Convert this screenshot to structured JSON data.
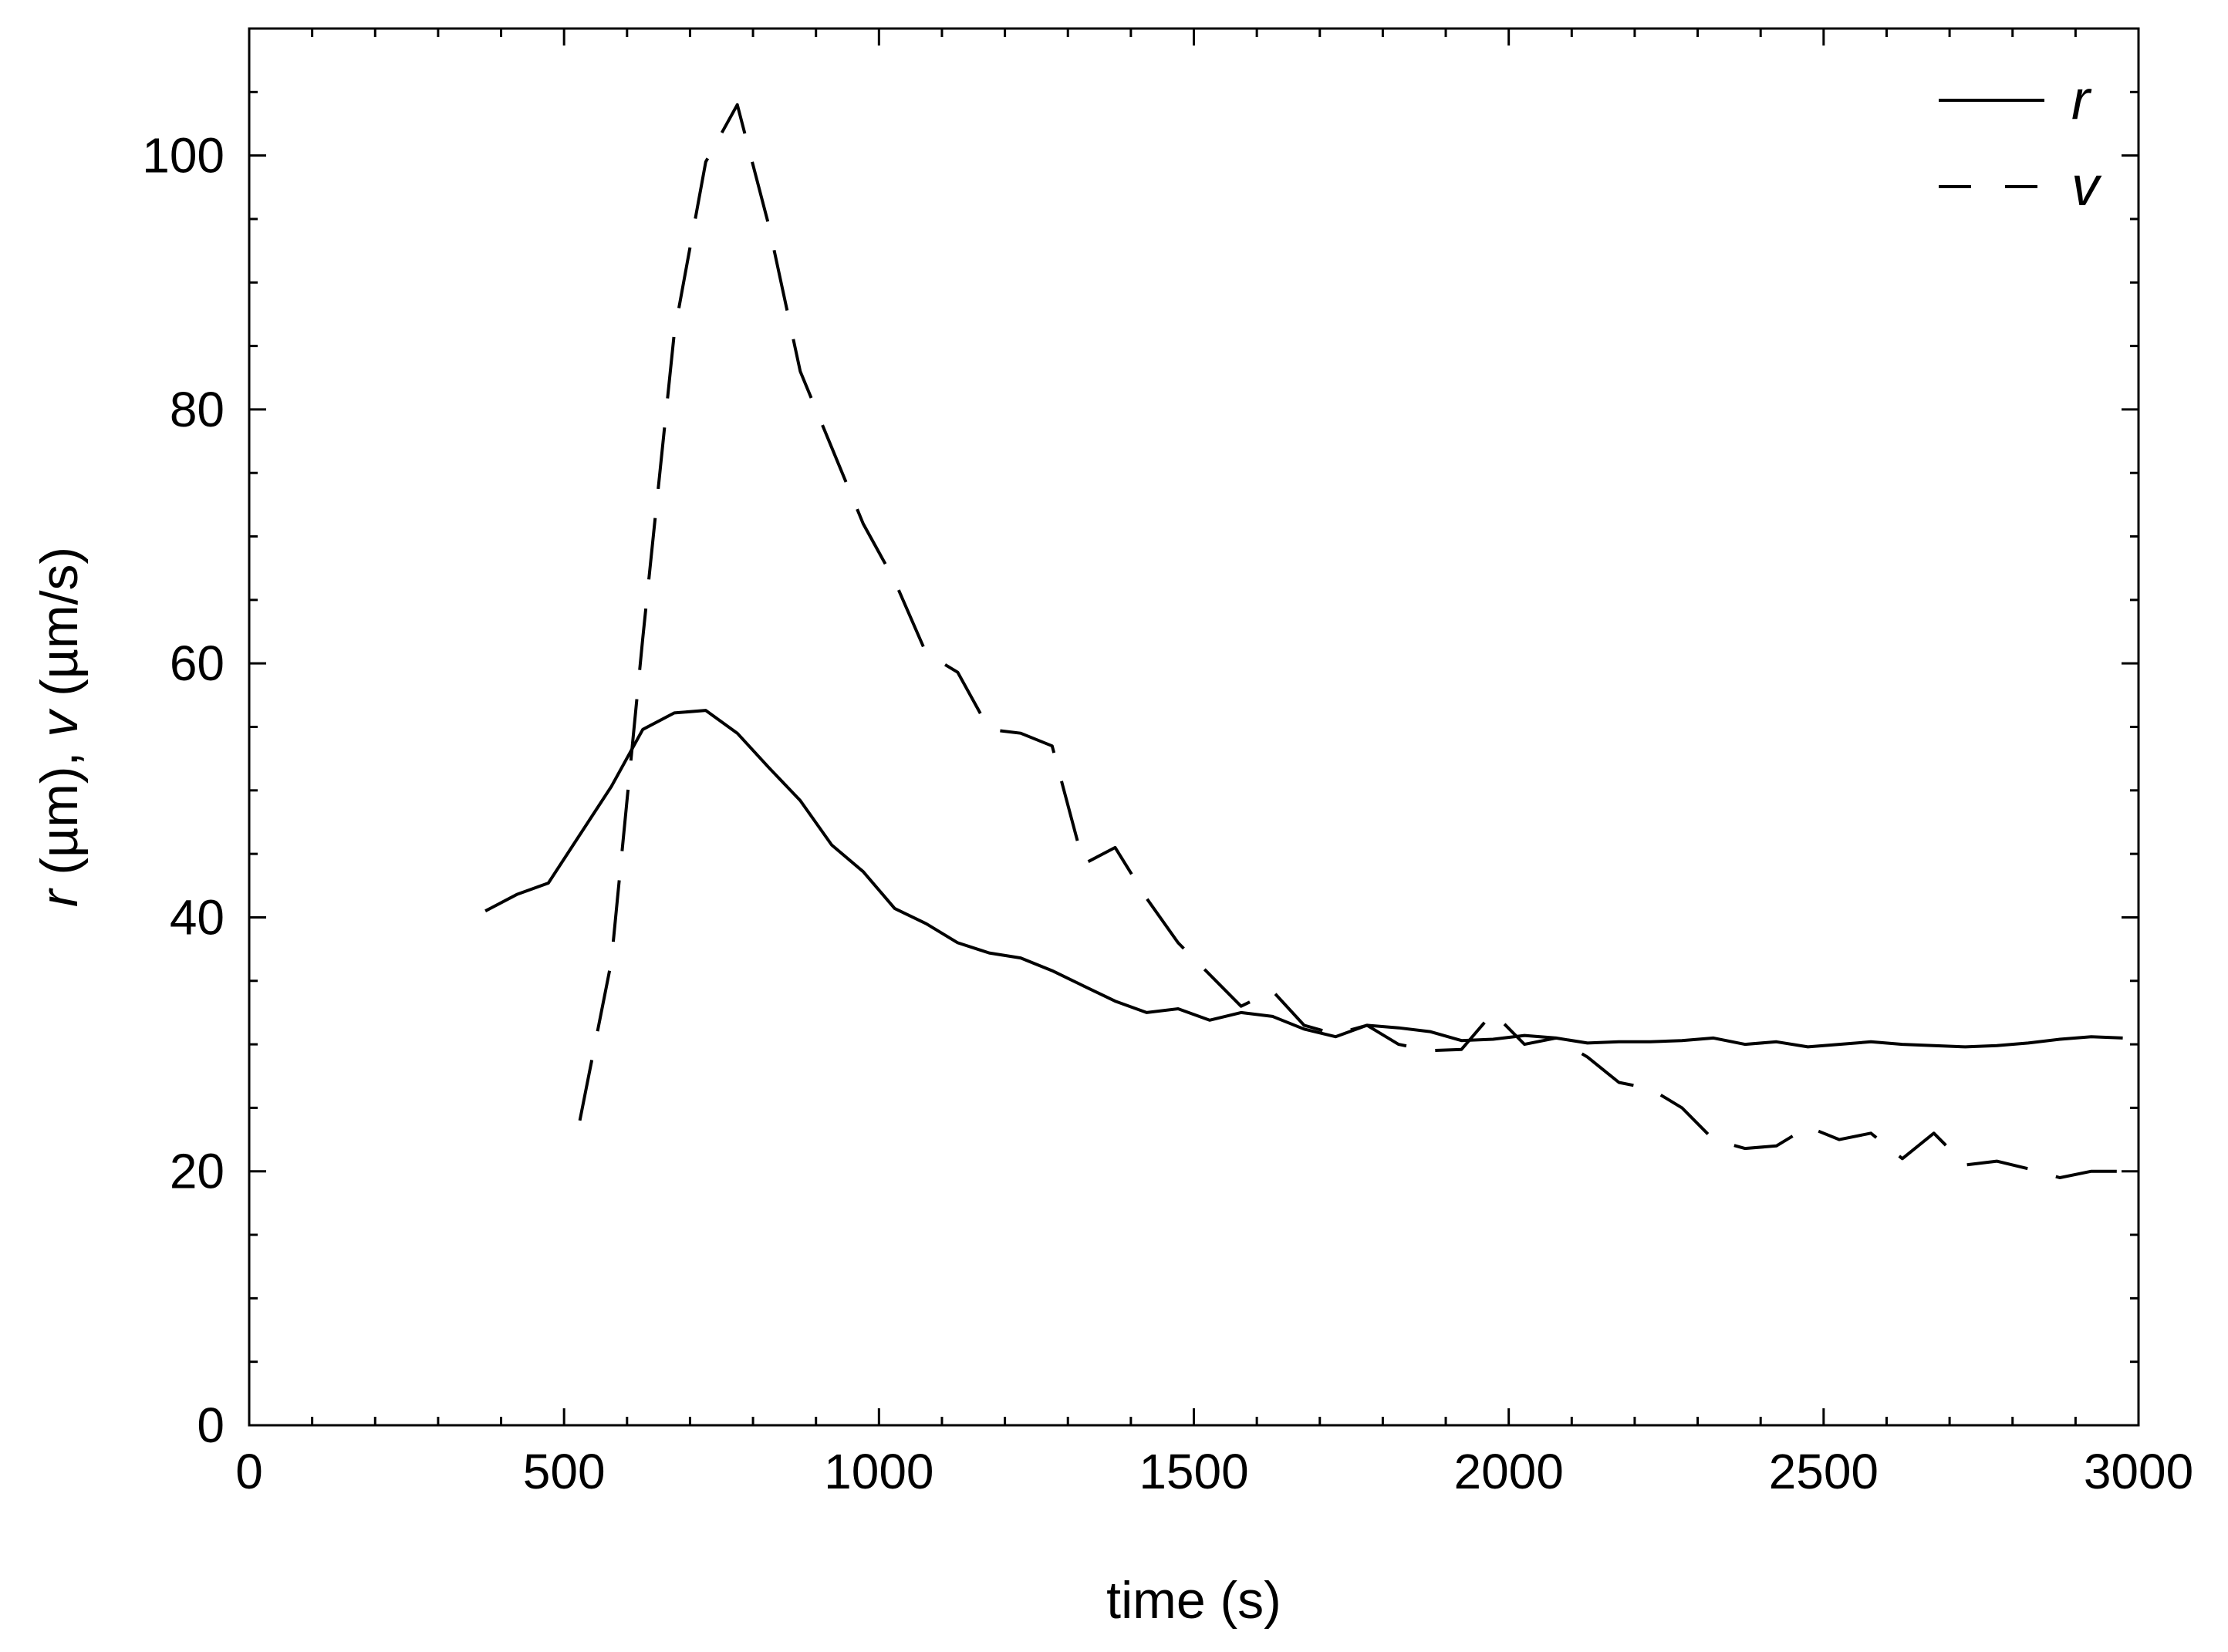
{
  "chart_data": {
    "type": "line",
    "title": "",
    "xlabel": "time (s)",
    "ylabel": {
      "parts": [
        {
          "text": "r",
          "italic": true
        },
        {
          "text": " (µm), ",
          "italic": false
        },
        {
          "text": "v",
          "italic": true
        },
        {
          "text": " (µm/s)",
          "italic": false
        }
      ]
    },
    "xlim": [
      0,
      3000
    ],
    "ylim": [
      0,
      110
    ],
    "xticks": [
      0,
      500,
      1000,
      1500,
      2000,
      2500,
      3000
    ],
    "xtick_labels": [
      "0",
      "500",
      "1000",
      "1500",
      "2000",
      "2500",
      "3000"
    ],
    "yticks": [
      0,
      20,
      40,
      60,
      80,
      100
    ],
    "ytick_labels": [
      "0",
      "20",
      "40",
      "60",
      "80",
      "100"
    ],
    "x_minor_step": 100,
    "y_minor_step": 5,
    "grid": false,
    "legend_position": "top-right",
    "series": [
      {
        "name": "r",
        "style": "solid",
        "color": "#000000",
        "x": [
          375,
          425,
          475,
          525,
          575,
          625,
          675,
          725,
          775,
          825,
          875,
          925,
          975,
          1025,
          1075,
          1125,
          1175,
          1225,
          1275,
          1325,
          1375,
          1425,
          1475,
          1525,
          1575,
          1625,
          1675,
          1725,
          1775,
          1825,
          1875,
          1925,
          1975,
          2025,
          2075,
          2125,
          2175,
          2225,
          2275,
          2325,
          2375,
          2425,
          2475,
          2525,
          2575,
          2625,
          2675,
          2725,
          2775,
          2825,
          2875,
          2925,
          2975
        ],
        "y": [
          40.5,
          41.8,
          42.7,
          46.5,
          50.3,
          54.8,
          56.1,
          56.3,
          54.5,
          51.8,
          49.2,
          45.7,
          43.6,
          40.7,
          39.5,
          38.0,
          37.2,
          36.8,
          35.8,
          34.6,
          33.4,
          32.5,
          32.8,
          31.9,
          32.5,
          32.2,
          31.2,
          30.6,
          31.5,
          31.3,
          31.0,
          30.3,
          30.4,
          30.7,
          30.5,
          30.1,
          30.2,
          30.2,
          30.3,
          30.5,
          30.0,
          30.2,
          29.8,
          30.0,
          30.2,
          30.0,
          29.9,
          29.8,
          29.9,
          30.1,
          30.4,
          30.6,
          30.5
        ]
      },
      {
        "name": "v",
        "style": "dashed",
        "color": "#000000",
        "x": [
          525,
          575,
          625,
          675,
          725,
          775,
          825,
          875,
          925,
          975,
          1025,
          1075,
          1125,
          1175,
          1225,
          1275,
          1325,
          1375,
          1425,
          1475,
          1525,
          1575,
          1625,
          1675,
          1725,
          1775,
          1825,
          1875,
          1925,
          1975,
          2025,
          2075,
          2125,
          2175,
          2225,
          2275,
          2325,
          2375,
          2425,
          2475,
          2525,
          2575,
          2625,
          2675,
          2725,
          2775,
          2825,
          2875,
          2925,
          2975
        ],
        "y": [
          24.0,
          36.5,
          62.0,
          86.0,
          99.5,
          104.0,
          94.5,
          83.0,
          77.0,
          71.0,
          66.5,
          60.8,
          59.3,
          54.8,
          54.5,
          53.5,
          44.2,
          45.5,
          41.5,
          38.0,
          35.5,
          33.0,
          34.2,
          31.5,
          30.8,
          31.5,
          30.0,
          29.5,
          29.6,
          32.5,
          30.0,
          30.5,
          29.0,
          27.0,
          26.5,
          25.0,
          22.5,
          21.8,
          22.0,
          23.5,
          22.5,
          23.0,
          21.0,
          23.0,
          20.5,
          20.8,
          20.2,
          19.5,
          20.0,
          20.0
        ]
      }
    ]
  }
}
